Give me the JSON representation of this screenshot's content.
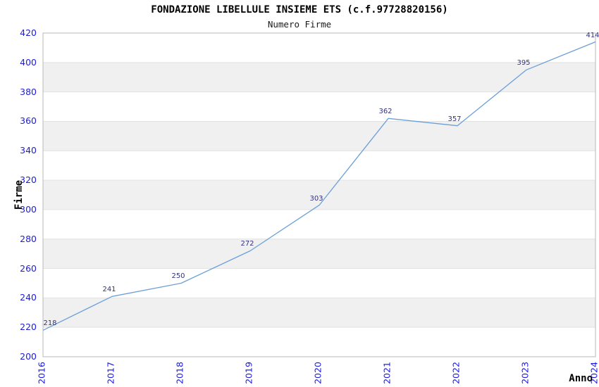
{
  "title": "FONDAZIONE LIBELLULE INSIEME ETS (c.f.97728820156)",
  "subtitle": "Numero Firme",
  "chart_data": {
    "type": "line",
    "x": [
      2016,
      2017,
      2018,
      2019,
      2020,
      2021,
      2022,
      2023,
      2024
    ],
    "series": [
      {
        "name": "Numero Firme",
        "values": [
          218,
          241,
          250,
          272,
          303,
          362,
          357,
          395,
          414
        ]
      }
    ],
    "data_labels": [
      "218",
      "241",
      "250",
      "272",
      "303",
      "362",
      "357",
      "395",
      "414"
    ],
    "xlabel": "Anno",
    "ylabel": "Firme",
    "ylim": [
      200,
      420
    ],
    "ytick_step": 20,
    "yticks": [
      200,
      220,
      240,
      260,
      280,
      300,
      320,
      340,
      360,
      380,
      400,
      420
    ],
    "grid": "horizontal-bands",
    "legend_position": "none"
  },
  "colors": {
    "background": "#ffffff",
    "line": "#6b9fd9",
    "tick_label": "#1c1cde",
    "data_label": "#32327d",
    "band_gray": "#f0f0f0",
    "gridline": "#e2e2e2",
    "plot_border": "#b9b9b9",
    "title_text": "#000000"
  }
}
